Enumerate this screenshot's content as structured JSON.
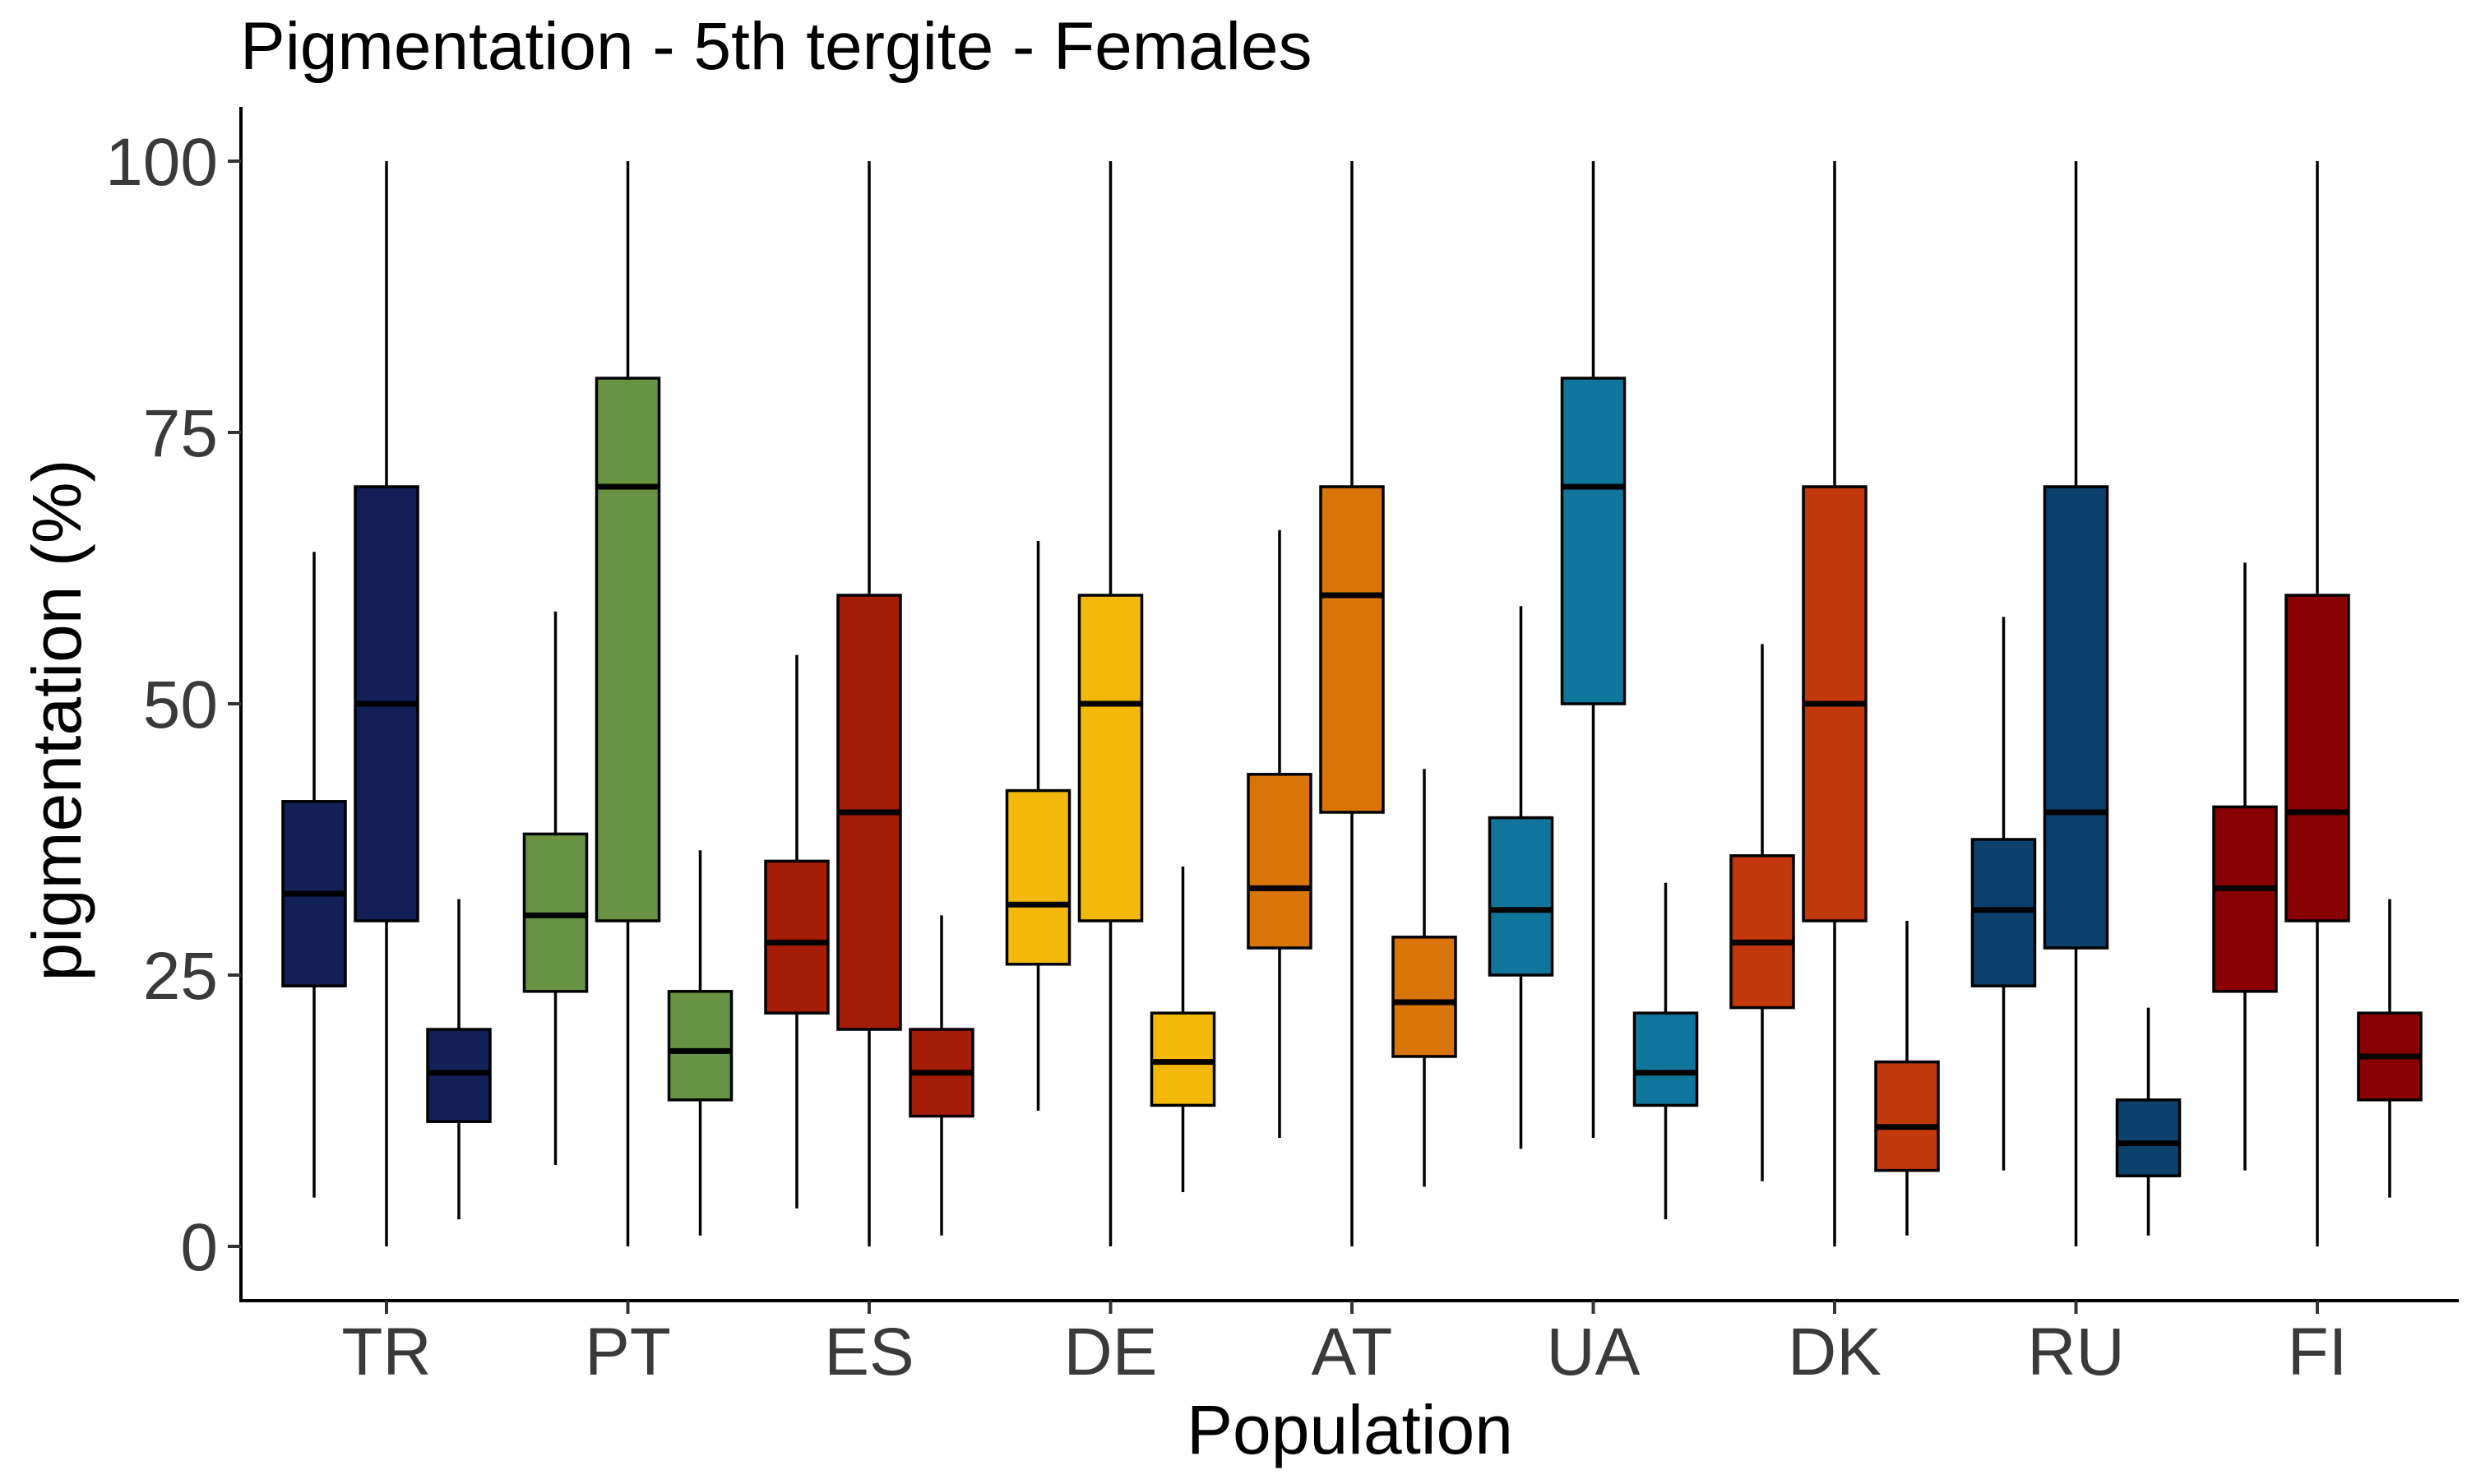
{
  "chart_data": {
    "type": "boxplot",
    "title": "Pigmentation - 5th tergite - Females",
    "xlabel": "Population",
    "ylabel": "pigmentation (%)",
    "ylim": [
      -5,
      105
    ],
    "yticks": [
      0,
      25,
      50,
      75,
      100
    ],
    "ytick_labels": [
      "0",
      "25",
      "50",
      "75",
      "100"
    ],
    "grid": false,
    "legend": "none",
    "categories": [
      "TR",
      "PT",
      "ES",
      "DE",
      "AT",
      "UA",
      "DK",
      "RU",
      "FI"
    ],
    "groups": [
      {
        "label": "TR",
        "color": "#131f57",
        "boxes": [
          {
            "min": 4.5,
            "q1": 24,
            "median": 32.5,
            "q3": 41,
            "max": 64
          },
          {
            "min": 0,
            "q1": 30,
            "median": 50,
            "q3": 70,
            "max": 100
          },
          {
            "min": 2.5,
            "q1": 11.5,
            "median": 16,
            "q3": 20,
            "max": 32
          }
        ]
      },
      {
        "label": "PT",
        "color": "#679342",
        "boxes": [
          {
            "min": 7.5,
            "q1": 23.5,
            "median": 30.5,
            "q3": 38,
            "max": 58.5
          },
          {
            "min": 0,
            "q1": 30,
            "median": 70,
            "q3": 80,
            "max": 100
          },
          {
            "min": 1,
            "q1": 13.5,
            "median": 18,
            "q3": 23.5,
            "max": 36.5
          }
        ]
      },
      {
        "label": "ES",
        "color": "#a51c08",
        "boxes": [
          {
            "min": 3.5,
            "q1": 21.5,
            "median": 28,
            "q3": 35.5,
            "max": 54.5
          },
          {
            "min": 0,
            "q1": 20,
            "median": 40,
            "q3": 60,
            "max": 100
          },
          {
            "min": 1,
            "q1": 12,
            "median": 16,
            "q3": 20,
            "max": 30.5
          }
        ]
      },
      {
        "label": "DE",
        "color": "#f2b90a",
        "boxes": [
          {
            "min": 12.5,
            "q1": 26,
            "median": 31.5,
            "q3": 42,
            "max": 65
          },
          {
            "min": 0,
            "q1": 30,
            "median": 50,
            "q3": 60,
            "max": 100
          },
          {
            "min": 5,
            "q1": 13,
            "median": 17,
            "q3": 21.5,
            "max": 35
          }
        ]
      },
      {
        "label": "AT",
        "color": "#d97408",
        "boxes": [
          {
            "min": 10,
            "q1": 27.5,
            "median": 33,
            "q3": 43.5,
            "max": 66
          },
          {
            "min": 0,
            "q1": 40,
            "median": 60,
            "q3": 70,
            "max": 100
          },
          {
            "min": 5.5,
            "q1": 17.5,
            "median": 22.5,
            "q3": 28.5,
            "max": 44
          }
        ]
      },
      {
        "label": "UA",
        "color": "#10759b",
        "boxes": [
          {
            "min": 9,
            "q1": 25,
            "median": 31,
            "q3": 39.5,
            "max": 59
          },
          {
            "min": 10,
            "q1": 50,
            "median": 70,
            "q3": 80,
            "max": 100
          },
          {
            "min": 2.5,
            "q1": 13,
            "median": 16,
            "q3": 21.5,
            "max": 33.5
          }
        ]
      },
      {
        "label": "DK",
        "color": "#c0380b",
        "boxes": [
          {
            "min": 6,
            "q1": 22,
            "median": 28,
            "q3": 36,
            "max": 55.5
          },
          {
            "min": 0,
            "q1": 30,
            "median": 50,
            "q3": 70,
            "max": 100
          },
          {
            "min": 1,
            "q1": 7,
            "median": 11,
            "q3": 17,
            "max": 30
          }
        ]
      },
      {
        "label": "RU",
        "color": "#0c416e",
        "boxes": [
          {
            "min": 7,
            "q1": 24,
            "median": 31,
            "q3": 37.5,
            "max": 58
          },
          {
            "min": 0,
            "q1": 27.5,
            "median": 40,
            "q3": 70,
            "max": 100
          },
          {
            "min": 1,
            "q1": 6.5,
            "median": 9.5,
            "q3": 13.5,
            "max": 22
          }
        ]
      },
      {
        "label": "FI",
        "color": "#890105",
        "boxes": [
          {
            "min": 7,
            "q1": 23.5,
            "median": 33,
            "q3": 40.5,
            "max": 63
          },
          {
            "min": 0,
            "q1": 30,
            "median": 40,
            "q3": 60,
            "max": 100
          },
          {
            "min": 4.5,
            "q1": 13.5,
            "median": 17.5,
            "q3": 21.5,
            "max": 32
          }
        ]
      }
    ]
  }
}
